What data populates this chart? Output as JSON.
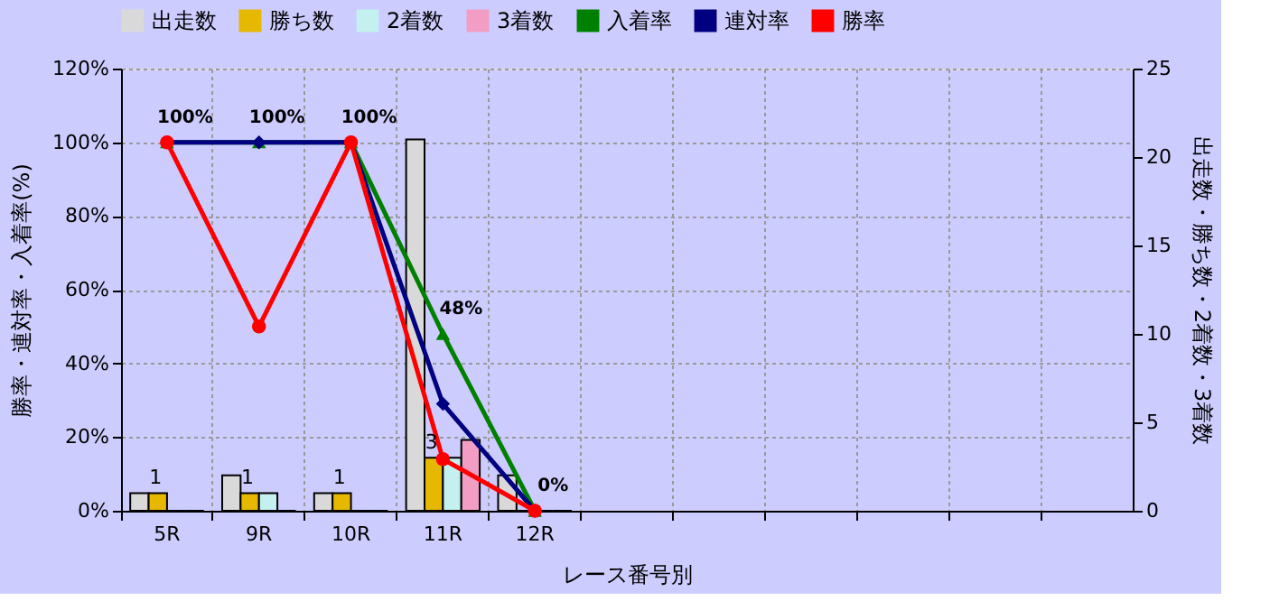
{
  "chart_data": {
    "type": "bar",
    "xlabel": "レース番号別",
    "ylabel": "勝率・連対率・入着率(%)",
    "y2label": "出走数・勝ち数・2着数・3着数",
    "categories": [
      "5R",
      "9R",
      "10R",
      "11R",
      "12R",
      null,
      null,
      null,
      null,
      null,
      null
    ],
    "series": [
      {
        "name": "出走数",
        "axis": "y2",
        "color": "#d9d9d9",
        "values": [
          1,
          2,
          1,
          21,
          2,
          null,
          null,
          null,
          null,
          null,
          null
        ]
      },
      {
        "name": "勝ち数",
        "axis": "y2",
        "color": "#e6b800",
        "values": [
          1,
          1,
          1,
          3,
          0,
          null,
          null,
          null,
          null,
          null,
          null
        ],
        "value_labels": [
          "1",
          "1",
          "1",
          "3",
          null,
          null,
          null,
          null,
          null,
          null,
          null
        ]
      },
      {
        "name": "2着数",
        "axis": "y2",
        "color": "#c4f0f0",
        "values": [
          0,
          1,
          0,
          3,
          0,
          null,
          null,
          null,
          null,
          null,
          null
        ]
      },
      {
        "name": "3着数",
        "axis": "y2",
        "color": "#f29ec4",
        "values": [
          0,
          0,
          0,
          4,
          0,
          null,
          null,
          null,
          null,
          null,
          null
        ]
      },
      {
        "name": "入着率",
        "type": "line",
        "axis": "y",
        "color": "#008000",
        "marker": "triangle",
        "values": [
          100,
          100,
          100,
          48,
          0,
          null,
          null,
          null,
          null,
          null,
          null
        ],
        "value_labels": [
          "100%",
          "100%",
          "100%",
          "48%",
          "0%",
          null,
          null,
          null,
          null,
          null,
          null
        ]
      },
      {
        "name": "連対率",
        "type": "line",
        "axis": "y",
        "color": "#000080",
        "marker": "diamond",
        "values": [
          100,
          100,
          100,
          29,
          0,
          null,
          null,
          null,
          null,
          null,
          null
        ]
      },
      {
        "name": "勝率",
        "type": "line",
        "axis": "y",
        "color": "#ff0000",
        "marker": "circle",
        "values": [
          100,
          50,
          100,
          14,
          0,
          null,
          null,
          null,
          null,
          null,
          null
        ]
      }
    ],
    "ylim": [
      0,
      120
    ],
    "yticks": [
      {
        "value": 0,
        "label": "0%"
      },
      {
        "value": 20,
        "label": "20%"
      },
      {
        "value": 40,
        "label": "40%"
      },
      {
        "value": 60,
        "label": "60%"
      },
      {
        "value": 80,
        "label": "80%"
      },
      {
        "value": 100,
        "label": "100%"
      },
      {
        "value": 120,
        "label": "120%"
      }
    ],
    "y2lim": [
      0,
      25
    ],
    "y2ticks": [
      0,
      5,
      10,
      15,
      20,
      25
    ],
    "grid": true,
    "legend": "top"
  }
}
